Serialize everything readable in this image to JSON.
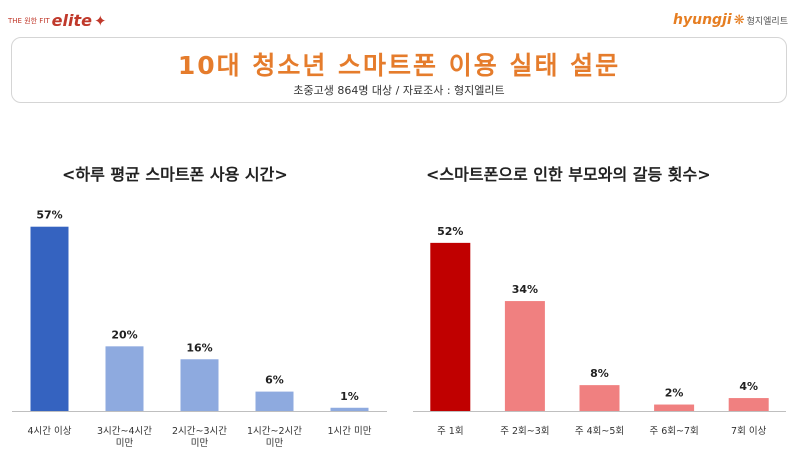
{
  "logo_left": {
    "small": "THE 원한 FIT",
    "brand": "elite",
    "mark": "✦"
  },
  "logo_right": {
    "en": "hyungji",
    "ko": "형지엘리트"
  },
  "title": "10대 청소년 스마트폰 이용 실태 설문",
  "subtitle": "초중고생 864명 대상 /   자료조사 : 형지엘리트",
  "colors": {
    "title": "#e57c2c",
    "left_highlight": "#3563c0",
    "left_bar": "#8eaadf",
    "right_highlight": "#c00000",
    "right_bar": "#f08080"
  },
  "chart_data": [
    {
      "type": "bar",
      "title": "<하루 평균 스마트폰 사용 시간>",
      "categories": [
        [
          "4시간 이상"
        ],
        [
          "3시간~4시간",
          "미만"
        ],
        [
          "2시간~3시간",
          "미만"
        ],
        [
          "1시간~2시간",
          "미만"
        ],
        [
          "1시간 미만"
        ]
      ],
      "values": [
        57,
        20,
        16,
        6,
        1
      ],
      "value_labels": [
        "57%",
        "20%",
        "16%",
        "6%",
        "1%"
      ],
      "unit": "%",
      "ylim": [
        0,
        60
      ],
      "grid": false,
      "highlight_index": 0
    },
    {
      "type": "bar",
      "title": "<스마트폰으로 인한 부모와의 갈등 횟수>",
      "categories": [
        [
          "주 1회"
        ],
        [
          "주 2회~3회"
        ],
        [
          "주 4회~5회"
        ],
        [
          "주 6회~7회"
        ],
        [
          "7회 이상"
        ]
      ],
      "values": [
        52,
        34,
        8,
        2,
        4
      ],
      "value_labels": [
        "52%",
        "34%",
        "8%",
        "2%",
        "4%"
      ],
      "unit": "%",
      "ylim": [
        0,
        60
      ],
      "grid": false,
      "highlight_index": 0
    }
  ]
}
